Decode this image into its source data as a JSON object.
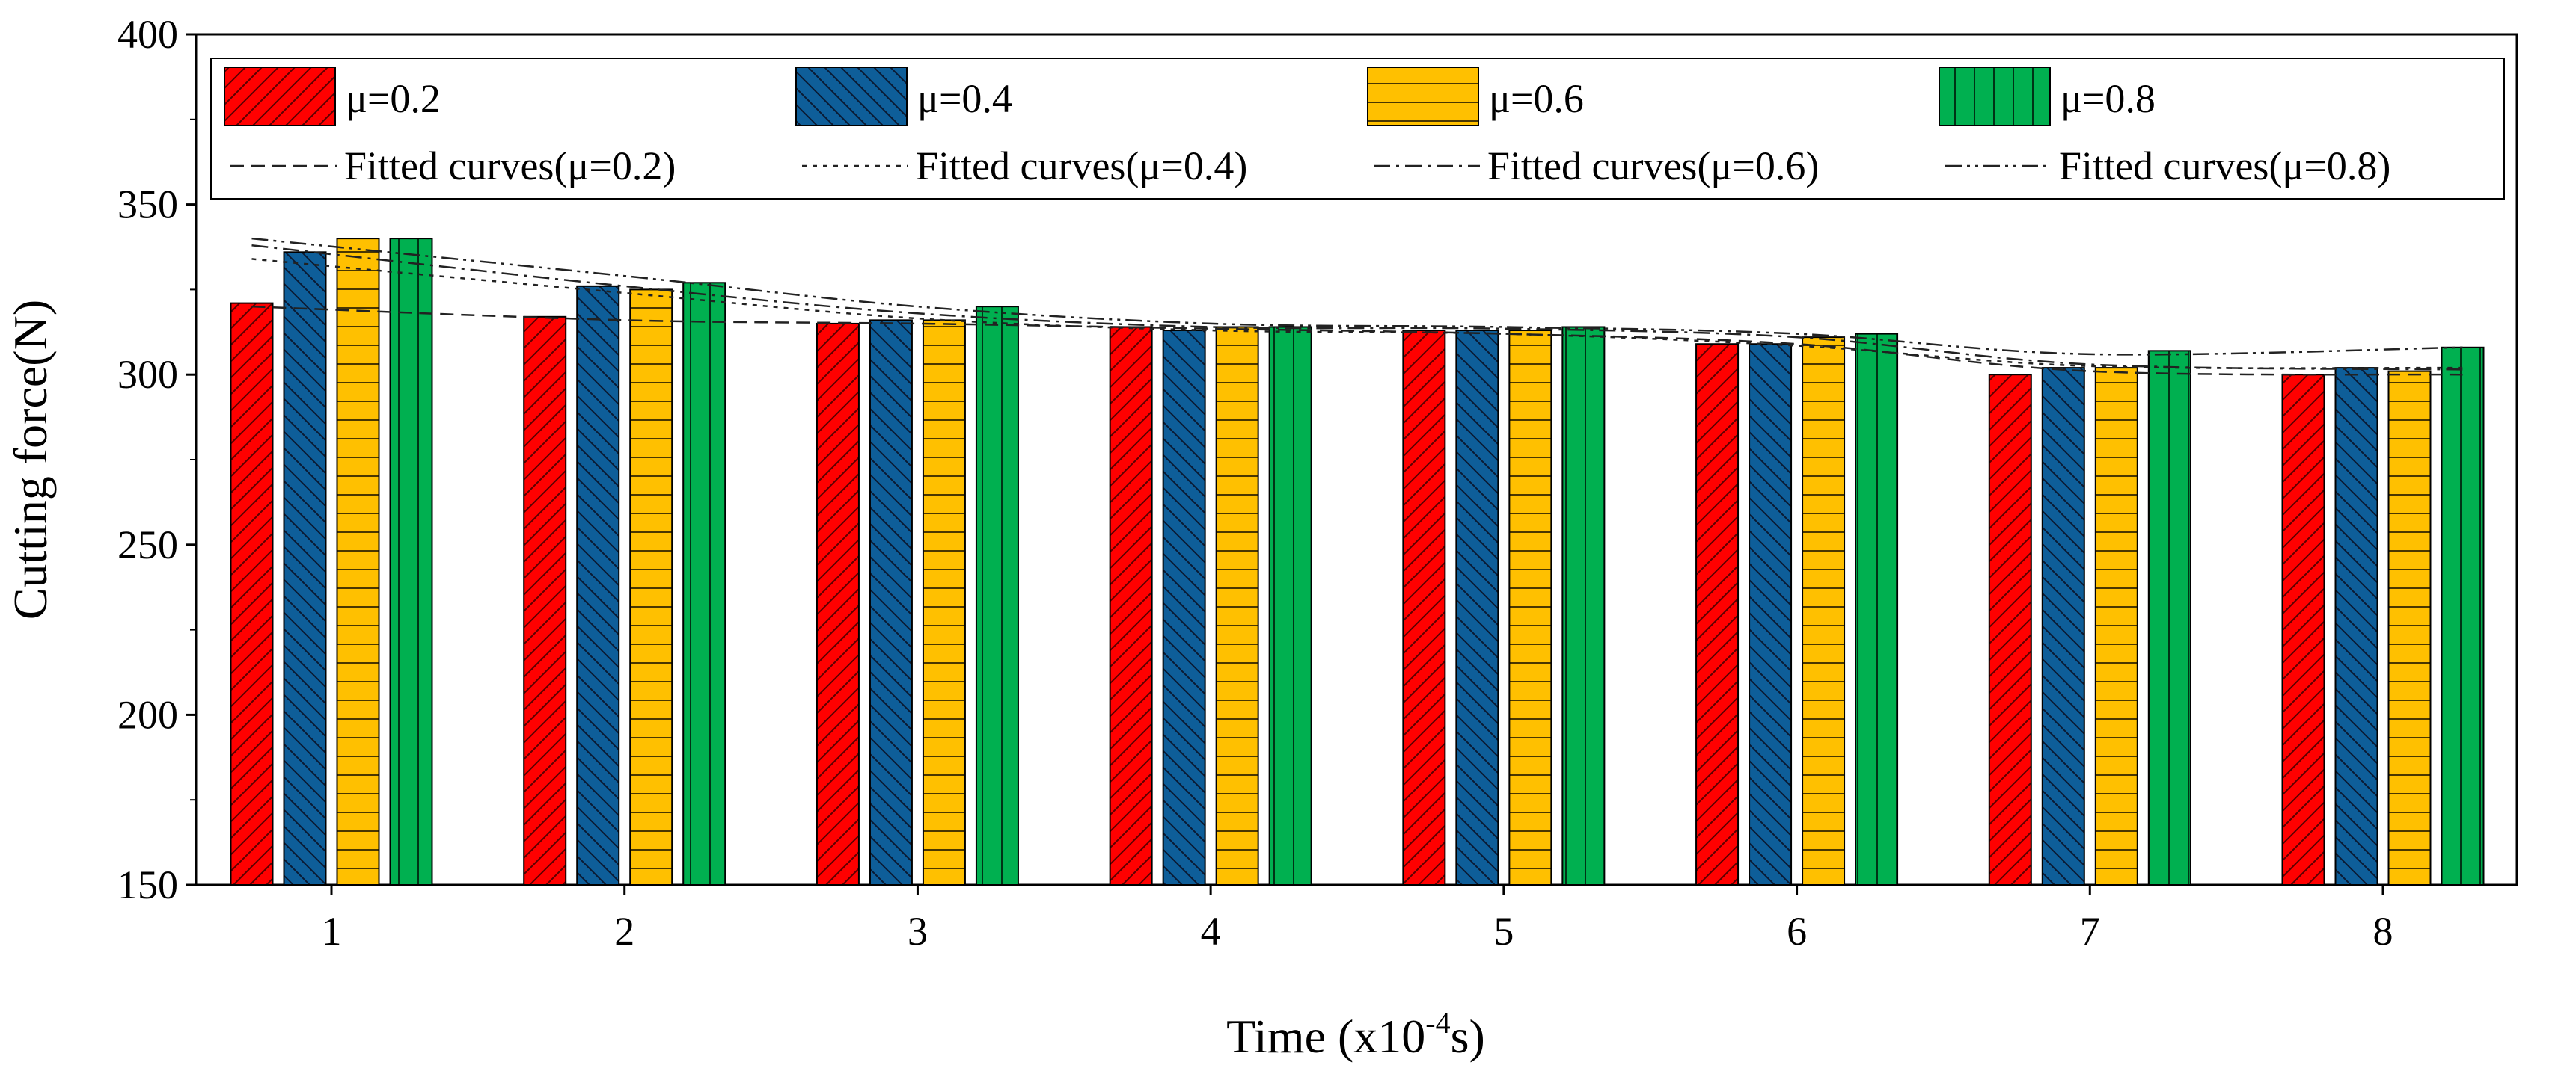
{
  "chart_data": {
    "type": "bar",
    "xlabel_main": "Time (x10",
    "xlabel_exp": "-4",
    "xlabel_tail": "s)",
    "ylabel": "Cutting force(N)",
    "ylim": [
      150,
      400
    ],
    "yticks": [
      150,
      200,
      250,
      300,
      350,
      400
    ],
    "categories": [
      "1",
      "2",
      "3",
      "4",
      "5",
      "6",
      "7",
      "8"
    ],
    "series": [
      {
        "name": "μ=0.2",
        "color": "#ff0000",
        "pattern": "diag-forward",
        "values": [
          321,
          317,
          315,
          314,
          313,
          309,
          300,
          300
        ]
      },
      {
        "name": "μ=0.4",
        "color": "#0e5e99",
        "pattern": "diag-back",
        "values": [
          336,
          326,
          316,
          313,
          313,
          309,
          302,
          302
        ]
      },
      {
        "name": "μ=0.6",
        "color": "#ffc000",
        "pattern": "horizontal",
        "values": [
          340,
          325,
          316,
          314,
          313,
          311,
          302,
          301
        ]
      },
      {
        "name": "μ=0.8",
        "color": "#00b050",
        "pattern": "vertical",
        "values": [
          340,
          327,
          320,
          314,
          314,
          312,
          307,
          308
        ]
      }
    ],
    "fitted_curves": [
      {
        "name": "Fitted curves(μ=0.2)",
        "dash": "18,10",
        "values": [
          320,
          316,
          315,
          313.5,
          312,
          309,
          301,
          300
        ]
      },
      {
        "name": "Fitted curves(μ=0.4)",
        "dash": "6,8",
        "values": [
          334,
          324,
          316.5,
          313,
          312,
          308.5,
          302.5,
          302
        ]
      },
      {
        "name": "Fitted curves(μ=0.6)",
        "dash": "22,8,4,8",
        "values": [
          338,
          326,
          318,
          314,
          313.5,
          311,
          303,
          301.5
        ]
      },
      {
        "name": "Fitted curves(μ=0.8)",
        "dash": "22,7,4,7,4,7",
        "values": [
          340,
          329,
          320,
          315,
          314,
          312,
          306,
          308
        ]
      }
    ],
    "legend_position": "top"
  }
}
